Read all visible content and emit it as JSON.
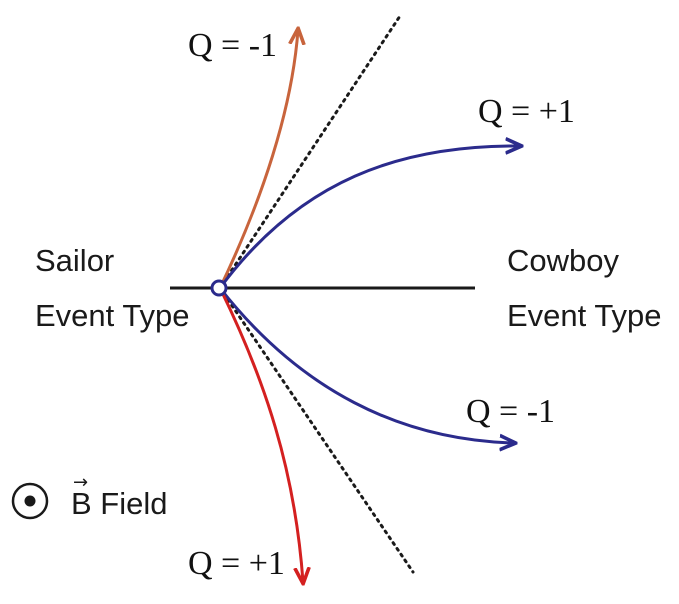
{
  "labels": {
    "sailor_line1": "Sailor",
    "sailor_line2": "Event Type",
    "cowboy_line1": "Cowboy",
    "cowboy_line2": "Event Type",
    "field_label": "B Field",
    "field_vector_arrow": "→"
  },
  "tracks": [
    {
      "name": "track-orange-top",
      "charge_label": "Q = -1",
      "color": "#c8643c"
    },
    {
      "name": "track-blue-upper",
      "charge_label": "Q = +1",
      "color": "#2b2b8c"
    },
    {
      "name": "track-blue-lower",
      "charge_label": "Q = -1",
      "color": "#2b2b8c"
    },
    {
      "name": "track-red-bottom",
      "charge_label": "Q = +1",
      "color": "#d42020"
    }
  ],
  "colors": {
    "axis_line": "#1a1a1a",
    "dotted_line": "#1a1a1a",
    "vertex": "#2b2b8c",
    "symbol": "#1a1a1a"
  },
  "icons": {
    "vertex": "open-circle-icon",
    "field_symbol": "circled-dot-icon"
  }
}
